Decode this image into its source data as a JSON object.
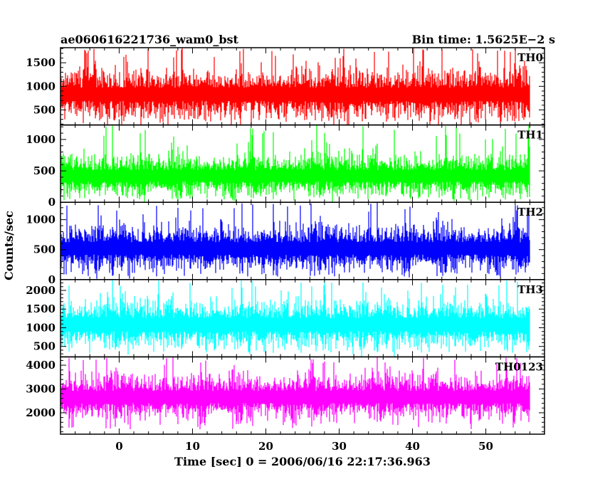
{
  "chart_data": {
    "type": "line",
    "title": "ae060616221736_wam0_bst",
    "subtitle": "Bin time: 1.5625E−2 s",
    "xlabel": "Time [sec] 0 = 2006/06/16 22:17:36.963",
    "ylabel": "Counts/sec",
    "xlim": [
      -8,
      58
    ],
    "x_ticks": [
      0,
      10,
      20,
      30,
      40,
      50
    ],
    "x_range_data": [
      -7.9,
      56
    ],
    "panels": [
      {
        "name": "TH0",
        "color": "#ff0000",
        "ylim": [
          180,
          1820
        ],
        "y_ticks": [
          500,
          1000,
          1500
        ],
        "mean": 830,
        "noise": 230,
        "spike_max": 1820,
        "floor": 250
      },
      {
        "name": "TH1",
        "color": "#00ff00",
        "ylim": [
          0,
          1230
        ],
        "y_ticks": [
          0,
          500,
          1000
        ],
        "mean": 420,
        "noise": 150,
        "spike_max": 1230,
        "floor": 50
      },
      {
        "name": "TH2",
        "color": "#0000ff",
        "ylim": [
          0,
          1290
        ],
        "y_ticks": [
          0,
          500,
          1000
        ],
        "mean": 520,
        "noise": 170,
        "spike_max": 1290,
        "floor": 50
      },
      {
        "name": "TH3",
        "color": "#00ffff",
        "ylim": [
          220,
          2290
        ],
        "y_ticks": [
          500,
          1000,
          1500,
          2000
        ],
        "mean": 1080,
        "noise": 290,
        "spike_max": 2290,
        "floor": 330
      },
      {
        "name": "TH0123",
        "color": "#ff00ff",
        "ylim": [
          1100,
          4350
        ],
        "y_ticks": [
          2000,
          3000,
          4000
        ],
        "mean": 2660,
        "noise": 420,
        "spike_max": 4350,
        "floor": 1300
      }
    ]
  }
}
